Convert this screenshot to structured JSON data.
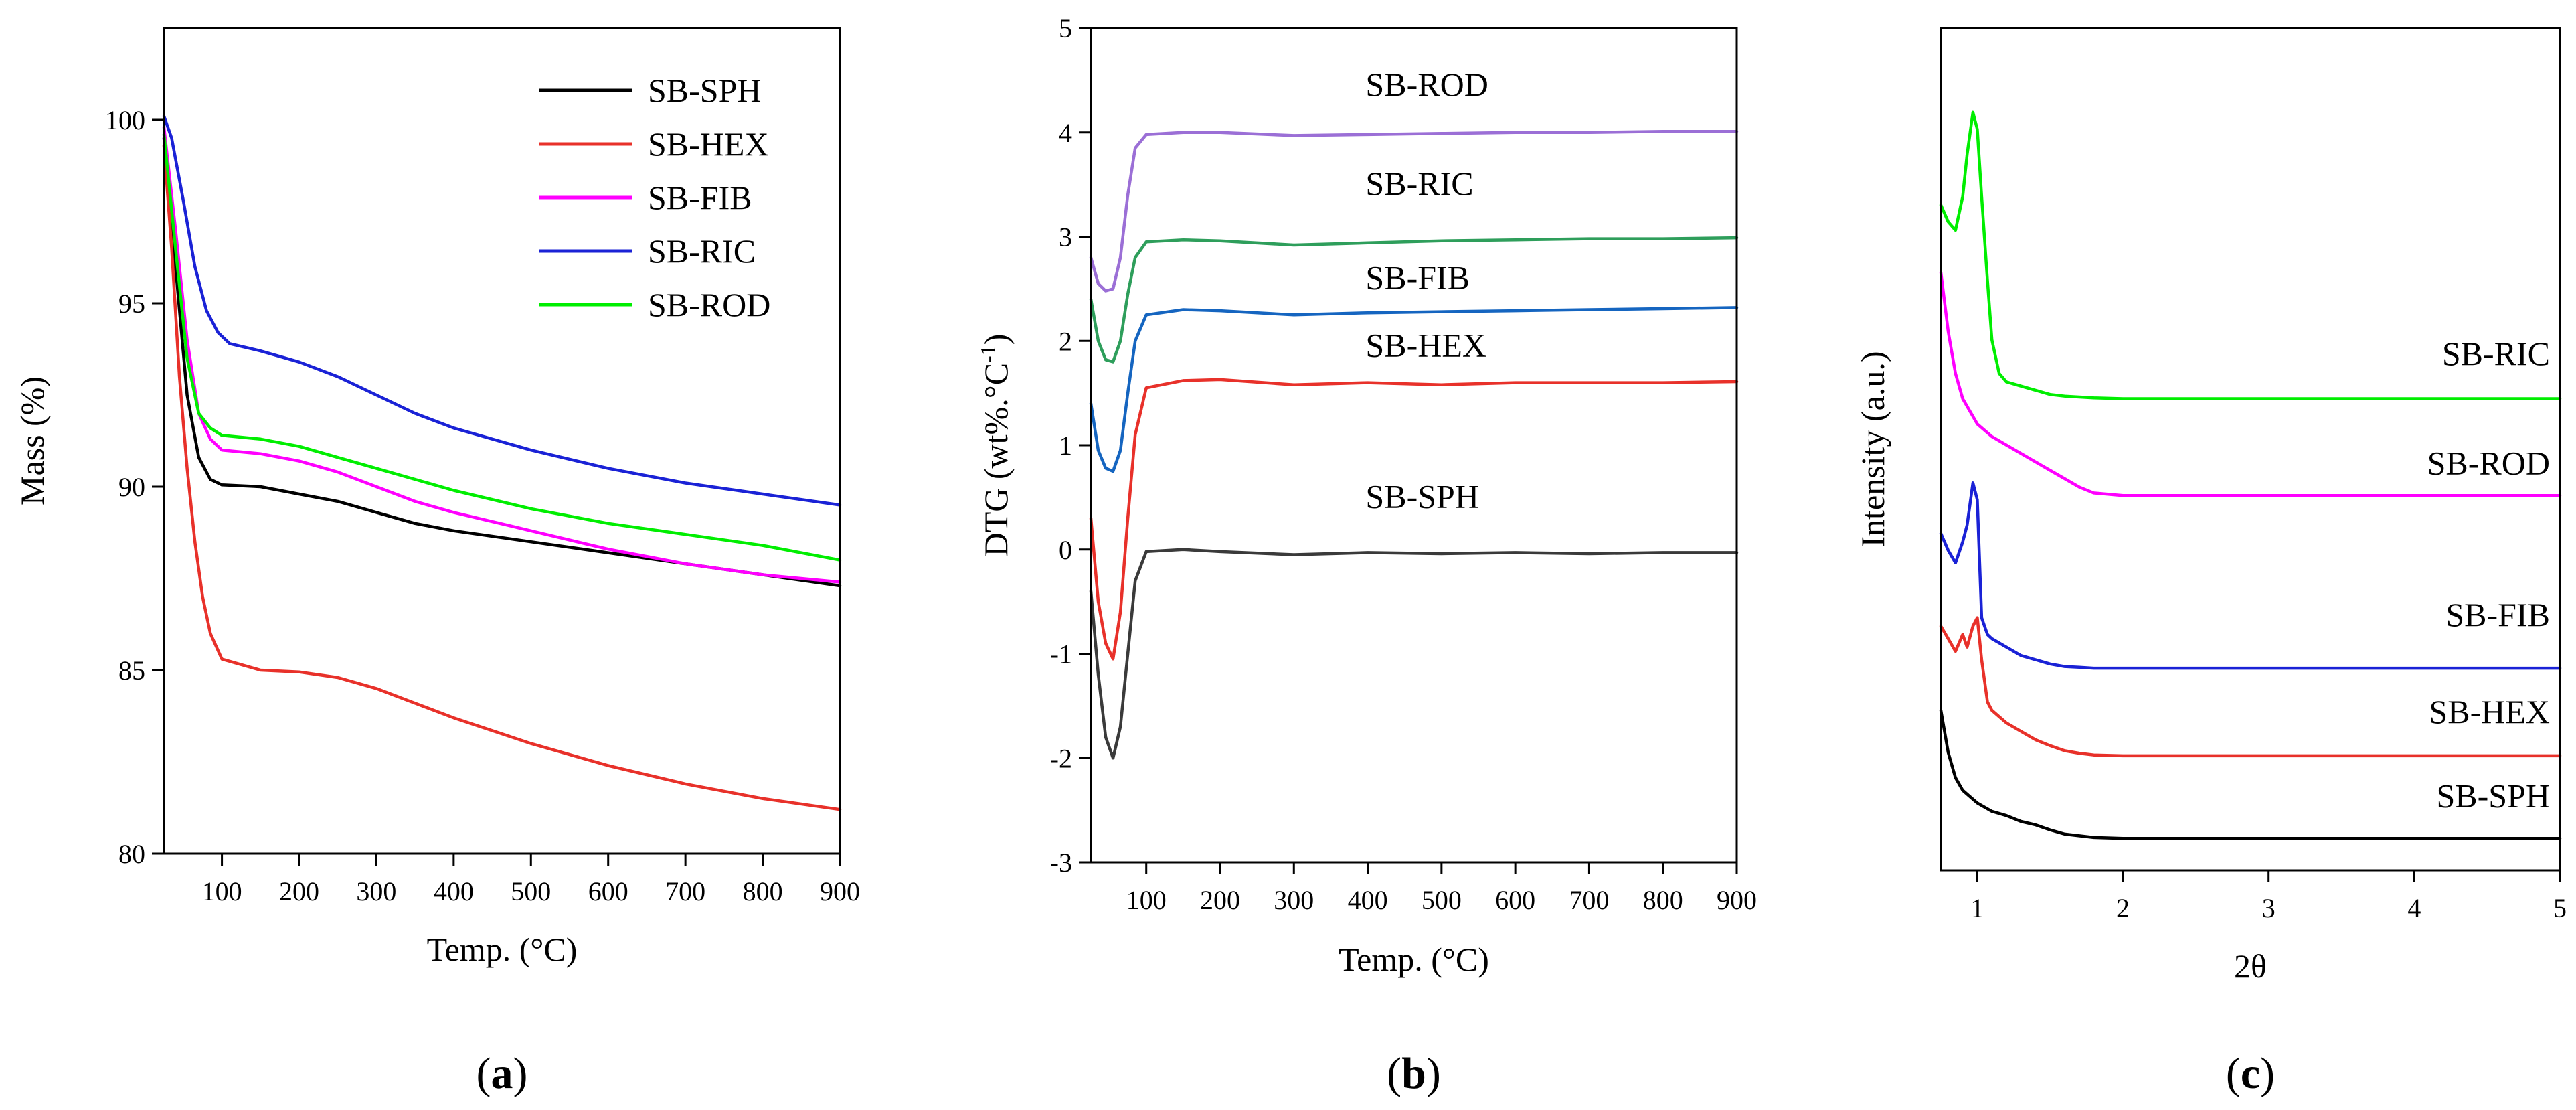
{
  "chart_data": [
    {
      "type": "line",
      "panel_label": "a",
      "xlabel": "Temp. (°C)",
      "ylabel": "Mass (%)",
      "xlim": [
        25,
        900
      ],
      "ylim": [
        80,
        102.5
      ],
      "xticks": [
        100,
        200,
        300,
        400,
        500,
        600,
        700,
        800,
        900
      ],
      "yticks": [
        80,
        85,
        90,
        95,
        100
      ],
      "legend": "top-right",
      "series": [
        {
          "name": "SB-SPH",
          "color": "#000000",
          "x": [
            25,
            40,
            55,
            70,
            85,
            100,
            150,
            200,
            250,
            300,
            350,
            400,
            500,
            600,
            700,
            800,
            900
          ],
          "y": [
            99.5,
            96.0,
            92.5,
            90.8,
            90.2,
            90.05,
            90.0,
            89.8,
            89.6,
            89.3,
            89.0,
            88.8,
            88.5,
            88.2,
            87.9,
            87.6,
            87.3
          ]
        },
        {
          "name": "SB-HEX",
          "color": "#e8312a",
          "x": [
            25,
            35,
            45,
            55,
            65,
            75,
            85,
            100,
            150,
            200,
            250,
            300,
            350,
            400,
            500,
            600,
            700,
            800,
            900
          ],
          "y": [
            99.3,
            96.5,
            93.0,
            90.5,
            88.5,
            87.0,
            86.0,
            85.3,
            85.0,
            84.95,
            84.8,
            84.5,
            84.1,
            83.7,
            83.0,
            82.4,
            81.9,
            81.5,
            81.2
          ]
        },
        {
          "name": "SB-FIB",
          "color": "#ff00ff",
          "x": [
            25,
            40,
            55,
            70,
            85,
            100,
            150,
            200,
            250,
            300,
            350,
            400,
            500,
            600,
            700,
            800,
            900
          ],
          "y": [
            99.8,
            97.0,
            94.0,
            92.0,
            91.3,
            91.0,
            90.9,
            90.7,
            90.4,
            90.0,
            89.6,
            89.3,
            88.8,
            88.3,
            87.9,
            87.6,
            87.4
          ]
        },
        {
          "name": "SB-RIC",
          "color": "#1a22d6",
          "x": [
            25,
            35,
            50,
            65,
            80,
            95,
            110,
            150,
            200,
            250,
            300,
            350,
            400,
            500,
            600,
            700,
            800,
            900
          ],
          "y": [
            100.1,
            99.5,
            97.8,
            96.0,
            94.8,
            94.2,
            93.9,
            93.7,
            93.4,
            93.0,
            92.5,
            92.0,
            91.6,
            91.0,
            90.5,
            90.1,
            89.8,
            89.5
          ]
        },
        {
          "name": "SB-ROD",
          "color": "#00ee00",
          "x": [
            25,
            40,
            55,
            70,
            85,
            100,
            150,
            200,
            250,
            300,
            350,
            400,
            500,
            600,
            700,
            800,
            900
          ],
          "y": [
            99.6,
            96.5,
            93.5,
            92.0,
            91.6,
            91.4,
            91.3,
            91.1,
            90.8,
            90.5,
            90.2,
            89.9,
            89.4,
            89.0,
            88.7,
            88.4,
            88.0
          ]
        }
      ]
    },
    {
      "type": "line",
      "panel_label": "b",
      "xlabel": "Temp. (°C)",
      "ylabel_main": "DTG (wt%.°C",
      "ylabel_sup": "-1",
      "ylabel_end": ")",
      "xlim": [
        25,
        900
      ],
      "ylim": [
        -3,
        5
      ],
      "xticks": [
        100,
        200,
        300,
        400,
        500,
        600,
        700,
        800,
        900
      ],
      "yticks": [
        -3,
        -2,
        -1,
        0,
        1,
        2,
        3,
        4,
        5
      ],
      "series": [
        {
          "name": "SB-SPH",
          "color": "#3a3a3a",
          "label_at": [
            175,
            0.4
          ],
          "x": [
            25,
            35,
            45,
            55,
            65,
            75,
            85,
            100,
            150,
            200,
            300,
            400,
            500,
            600,
            700,
            800,
            900
          ],
          "y": [
            -0.4,
            -1.2,
            -1.8,
            -2.0,
            -1.7,
            -1.0,
            -0.3,
            -0.02,
            0.0,
            -0.02,
            -0.05,
            -0.03,
            -0.04,
            -0.03,
            -0.04,
            -0.03,
            -0.03
          ]
        },
        {
          "name": "SB-HEX",
          "color": "#e8312a",
          "label_at": [
            175,
            1.85
          ],
          "x": [
            25,
            35,
            45,
            55,
            65,
            75,
            85,
            100,
            150,
            200,
            300,
            400,
            500,
            600,
            700,
            800,
            900
          ],
          "y": [
            0.3,
            -0.5,
            -0.9,
            -1.05,
            -0.6,
            0.3,
            1.1,
            1.55,
            1.62,
            1.63,
            1.58,
            1.6,
            1.58,
            1.6,
            1.6,
            1.6,
            1.61
          ]
        },
        {
          "name": "SB-FIB",
          "color": "#1565c0",
          "label_at": [
            175,
            2.5
          ],
          "x": [
            25,
            35,
            45,
            55,
            65,
            75,
            85,
            100,
            150,
            200,
            300,
            400,
            500,
            600,
            700,
            800,
            900
          ],
          "y": [
            1.4,
            0.95,
            0.78,
            0.75,
            0.95,
            1.5,
            2.0,
            2.25,
            2.3,
            2.29,
            2.25,
            2.27,
            2.28,
            2.29,
            2.3,
            2.31,
            2.32
          ]
        },
        {
          "name": "SB-RIC",
          "color": "#2e9e5b",
          "label_at": [
            175,
            3.4
          ],
          "x": [
            25,
            35,
            45,
            55,
            65,
            75,
            85,
            100,
            150,
            200,
            300,
            400,
            500,
            600,
            700,
            800,
            900
          ],
          "y": [
            2.4,
            2.0,
            1.82,
            1.8,
            2.0,
            2.45,
            2.8,
            2.95,
            2.97,
            2.96,
            2.92,
            2.94,
            2.96,
            2.97,
            2.98,
            2.98,
            2.99
          ]
        },
        {
          "name": "SB-ROD",
          "color": "#9b6fd6",
          "label_at": [
            175,
            4.35
          ],
          "x": [
            25,
            35,
            45,
            55,
            65,
            75,
            85,
            100,
            150,
            200,
            300,
            400,
            500,
            600,
            700,
            800,
            900
          ],
          "y": [
            2.8,
            2.55,
            2.48,
            2.5,
            2.8,
            3.4,
            3.85,
            3.98,
            4.0,
            4.0,
            3.97,
            3.98,
            3.99,
            4.0,
            4.0,
            4.01,
            4.01
          ]
        }
      ]
    },
    {
      "type": "line",
      "panel_label": "c",
      "xlabel": "2θ",
      "ylabel": "Intensity (a.u.)",
      "xlim": [
        0.75,
        5
      ],
      "ylim": [
        0,
        100
      ],
      "xticks": [
        1,
        2,
        3,
        4,
        5
      ],
      "yticks": [],
      "series": [
        {
          "name": "SB-SPH",
          "color": "#000000",
          "label_at": [
            4.7,
            7.5
          ],
          "x": [
            0.75,
            0.8,
            0.85,
            0.9,
            1.0,
            1.1,
            1.2,
            1.3,
            1.4,
            1.5,
            1.6,
            1.7,
            1.8,
            2.0,
            2.5,
            3.0,
            4.0,
            5.0
          ],
          "y": [
            19,
            14,
            11,
            9.5,
            8,
            7,
            6.5,
            5.8,
            5.4,
            4.8,
            4.3,
            4.1,
            3.9,
            3.8,
            3.8,
            3.8,
            3.8,
            3.8
          ]
        },
        {
          "name": "SB-HEX",
          "color": "#e8312a",
          "label_at": [
            4.7,
            17.5
          ],
          "x": [
            0.75,
            0.8,
            0.85,
            0.9,
            0.93,
            0.97,
            1.0,
            1.03,
            1.07,
            1.1,
            1.2,
            1.3,
            1.4,
            1.5,
            1.6,
            1.7,
            1.8,
            2.0,
            3.0,
            4.0,
            5.0
          ],
          "y": [
            29,
            27.5,
            26,
            28,
            26.5,
            29,
            30,
            25,
            20,
            19,
            17.5,
            16.5,
            15.5,
            14.8,
            14.2,
            13.9,
            13.7,
            13.6,
            13.6,
            13.6,
            13.6
          ]
        },
        {
          "name": "SB-FIB",
          "color": "#1a22d6",
          "label_at": [
            4.7,
            29
          ],
          "x": [
            0.75,
            0.8,
            0.85,
            0.9,
            0.93,
            0.97,
            1.0,
            1.03,
            1.07,
            1.1,
            1.2,
            1.3,
            1.4,
            1.5,
            1.6,
            1.7,
            1.8,
            2.0,
            3.0,
            4.0,
            5.0
          ],
          "y": [
            40,
            38,
            36.5,
            39,
            41,
            46,
            44,
            30,
            28,
            27.5,
            26.5,
            25.5,
            25,
            24.5,
            24.2,
            24.1,
            24.0,
            24.0,
            24.0,
            24.0,
            24.0
          ]
        },
        {
          "name": "SB-ROD",
          "color": "#ff00ff",
          "label_at": [
            4.7,
            47
          ],
          "x": [
            0.75,
            0.8,
            0.85,
            0.9,
            1.0,
            1.1,
            1.2,
            1.3,
            1.4,
            1.5,
            1.6,
            1.7,
            1.8,
            2.0,
            3.0,
            4.0,
            5.0
          ],
          "y": [
            71,
            64,
            59,
            56,
            53,
            51.5,
            50.5,
            49.5,
            48.5,
            47.5,
            46.5,
            45.5,
            44.8,
            44.5,
            44.5,
            44.5,
            44.5
          ]
        },
        {
          "name": "SB-RIC",
          "color": "#00ee00",
          "label_at": [
            4.7,
            60
          ],
          "x": [
            0.75,
            0.8,
            0.85,
            0.9,
            0.93,
            0.97,
            1.0,
            1.03,
            1.07,
            1.1,
            1.15,
            1.2,
            1.3,
            1.4,
            1.5,
            1.6,
            1.7,
            1.8,
            2.0,
            3.0,
            4.0,
            5.0
          ],
          "y": [
            79,
            77,
            76,
            80,
            85,
            90,
            88,
            80,
            70,
            63,
            59,
            58,
            57.5,
            57,
            56.5,
            56.3,
            56.2,
            56.1,
            56.0,
            56.0,
            56.0,
            56.0
          ]
        }
      ]
    }
  ]
}
